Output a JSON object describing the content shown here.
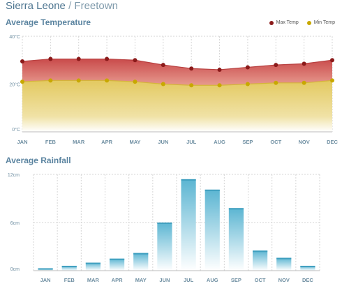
{
  "header": {
    "country": "Sierra Leone",
    "separator": "/",
    "city": "Freetown"
  },
  "temperature": {
    "title": "Average Temperature",
    "legend": [
      {
        "label": "Max Temp",
        "color": "#8b1a1a"
      },
      {
        "label": "Min Temp",
        "color": "#c8a800"
      }
    ]
  },
  "rainfall": {
    "title": "Average Rainfall"
  },
  "chart_data": [
    {
      "type": "area",
      "title": "Average Temperature",
      "categories": [
        "JAN",
        "FEB",
        "MAR",
        "APR",
        "MAY",
        "JUN",
        "JUL",
        "AUG",
        "SEP",
        "OCT",
        "NOV",
        "DEC"
      ],
      "series": [
        {
          "name": "Max Temp",
          "values": [
            29.5,
            30.5,
            30.5,
            30.5,
            30,
            28,
            26.5,
            26,
            27,
            28,
            28.5,
            30
          ],
          "color": "#8b1a1a"
        },
        {
          "name": "Min Temp",
          "values": [
            21,
            21.5,
            21.5,
            21.5,
            21,
            20,
            19.5,
            19.5,
            20,
            20.5,
            20.5,
            21.5
          ],
          "color": "#c8a800"
        }
      ],
      "ytick_labels": [
        "0°C",
        "20°C",
        "40°C"
      ],
      "ylim": [
        0,
        40
      ],
      "grid": true,
      "legend_position": "top-right"
    },
    {
      "type": "bar",
      "title": "Average Rainfall",
      "categories": [
        "JAN",
        "FEB",
        "MAR",
        "APR",
        "MAY",
        "JUN",
        "JUL",
        "AUG",
        "SEP",
        "OCT",
        "NOV",
        "DEC"
      ],
      "values": [
        0.3,
        0.6,
        1.0,
        1.5,
        2.2,
        6.0,
        11.4,
        10.1,
        7.8,
        2.5,
        1.6,
        0.6
      ],
      "ytick_labels": [
        "0cm",
        "6cm",
        "12cm"
      ],
      "ylim": [
        0,
        12
      ],
      "color": "#5bb5d2",
      "grid": true
    }
  ]
}
